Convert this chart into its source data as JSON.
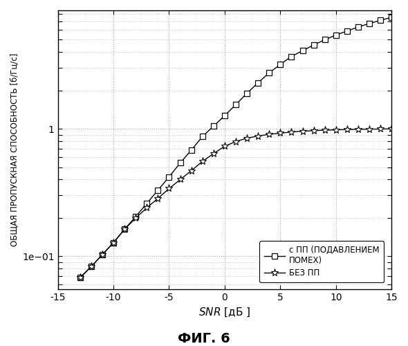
{
  "snr": [
    -13,
    -12,
    -11,
    -10,
    -9,
    -8,
    -7,
    -6,
    -5,
    -4,
    -3,
    -2,
    -1,
    0,
    1,
    2,
    3,
    4,
    5,
    6,
    7,
    8,
    9,
    10,
    11,
    12,
    13,
    14,
    15
  ],
  "with_pp": [
    0.068,
    0.083,
    0.103,
    0.128,
    0.163,
    0.205,
    0.26,
    0.33,
    0.42,
    0.54,
    0.68,
    0.87,
    1.05,
    1.27,
    1.55,
    1.9,
    2.3,
    2.75,
    3.2,
    3.7,
    4.1,
    4.55,
    5.0,
    5.45,
    5.85,
    6.3,
    6.7,
    7.1,
    7.5
  ],
  "without_pp": [
    0.068,
    0.083,
    0.103,
    0.128,
    0.163,
    0.2,
    0.24,
    0.285,
    0.34,
    0.4,
    0.47,
    0.555,
    0.64,
    0.73,
    0.795,
    0.845,
    0.878,
    0.905,
    0.925,
    0.945,
    0.958,
    0.968,
    0.976,
    0.982,
    0.987,
    0.991,
    0.994,
    0.996,
    1.0
  ],
  "snr_ticks": [
    -15,
    -10,
    -5,
    0,
    5,
    10,
    15
  ],
  "ylabel": "ОБЩАЯ ПРОПУСКНАЯ СПОСОБНОСТЬ [б/Гц/с]",
  "legend1": "с ПП (ПОДАВЛЕНИЕМ\nПОМЕХ)",
  "legend2": "БЕЗ ПП",
  "fig_label": "ФИГ. 6",
  "xlim": [
    -15,
    15
  ],
  "ylim_log": [
    0.055,
    8.5
  ],
  "background": "#ffffff",
  "line_color": "#000000",
  "grid_color": "#aaaaaa"
}
